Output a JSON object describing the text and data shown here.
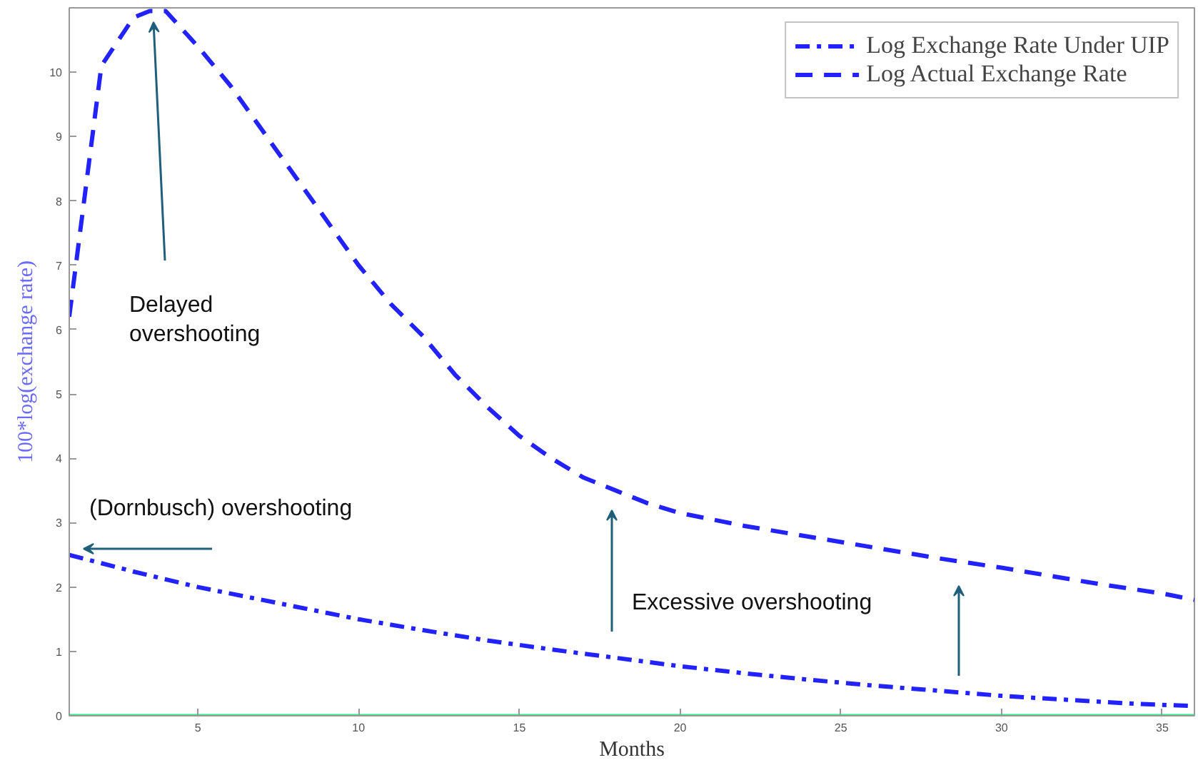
{
  "chart_data": {
    "type": "line",
    "xlabel": "Months",
    "ylabel": "100*log(exchange rate)",
    "xlim": [
      1,
      36
    ],
    "ylim": [
      0,
      11
    ],
    "xticks": [
      5,
      10,
      15,
      20,
      25,
      30,
      35
    ],
    "yticks": [
      0,
      1,
      2,
      3,
      4,
      5,
      6,
      7,
      8,
      9,
      10
    ],
    "grid": false,
    "legend": "top right",
    "series": [
      {
        "name": "Log Exchange Rate Under UIP",
        "color": "#2222ff",
        "line_style": "dashdot",
        "x": [
          1,
          2,
          3,
          4,
          5,
          6,
          7,
          8,
          9,
          10,
          12,
          14,
          16,
          18,
          20,
          22,
          24,
          26,
          28,
          30,
          32,
          34,
          36
        ],
        "values": [
          2.5,
          2.37,
          2.24,
          2.12,
          2.0,
          1.9,
          1.8,
          1.7,
          1.6,
          1.5,
          1.33,
          1.17,
          1.03,
          0.9,
          0.77,
          0.66,
          0.56,
          0.47,
          0.39,
          0.31,
          0.25,
          0.19,
          0.15
        ]
      },
      {
        "name": "Log Actual Exchange Rate",
        "color": "#2222ff",
        "line_style": "dashed",
        "x": [
          1,
          2,
          3,
          3.5,
          4,
          5,
          6,
          7,
          8,
          9,
          10,
          11,
          12,
          13,
          14,
          15,
          16,
          17,
          18,
          19,
          20,
          22,
          25,
          28,
          30,
          33,
          35,
          36
        ],
        "values": [
          6.2,
          10.1,
          10.85,
          10.95,
          10.95,
          10.4,
          9.8,
          9.1,
          8.4,
          7.7,
          7.0,
          6.4,
          5.9,
          5.3,
          4.8,
          4.35,
          4.0,
          3.7,
          3.5,
          3.3,
          3.15,
          2.95,
          2.7,
          2.45,
          2.3,
          2.05,
          1.9,
          1.8
        ]
      },
      {
        "color": "#33ee88",
        "line_style": "solid",
        "x": [
          1,
          36
        ],
        "values": [
          0,
          0
        ]
      }
    ],
    "annotations": [
      "Delayed\n overshooting",
      "(Dornbusch) overshooting",
      "Excessive overshooting"
    ]
  }
}
